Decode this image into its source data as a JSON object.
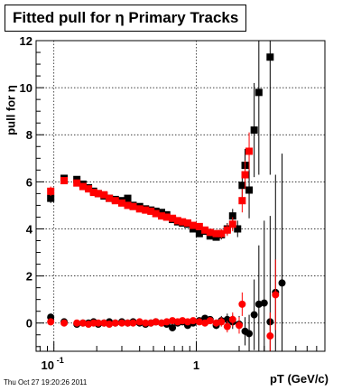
{
  "title": "Fitted pull for η  Primary Tracks",
  "footer": "Thu Oct 27 19:20:26 2011",
  "chart_data": {
    "type": "scatter",
    "title": "Fitted pull for η  Primary Tracks",
    "xlabel": "pT (GeV/c)",
    "ylabel": "pull for η",
    "x_scale": "log",
    "xlim": [
      0.075,
      8.0
    ],
    "ylim": [
      -1.2,
      12.0
    ],
    "x_ticks": [
      {
        "value": 0.1,
        "label": "10",
        "exp": "-1"
      },
      {
        "value": 1,
        "label": "1"
      }
    ],
    "y_ticks": [
      0,
      2,
      4,
      6,
      8,
      10,
      12
    ],
    "grid": true,
    "colors": {
      "series_black": "#000000",
      "series_red": "#ff0000",
      "grid": "#000000"
    },
    "series": [
      {
        "marker": "square",
        "color": "#000000",
        "points": [
          {
            "x": 0.095,
            "y": 5.3,
            "e": 0.2
          },
          {
            "x": 0.118,
            "y": 6.15,
            "e": 0.15
          },
          {
            "x": 0.145,
            "y": 6.1,
            "e": 0.12
          },
          {
            "x": 0.16,
            "y": 5.9,
            "e": 0.12
          },
          {
            "x": 0.175,
            "y": 5.75,
            "e": 0.1
          },
          {
            "x": 0.19,
            "y": 5.6,
            "e": 0.1
          },
          {
            "x": 0.205,
            "y": 5.5,
            "e": 0.1
          },
          {
            "x": 0.225,
            "y": 5.4,
            "e": 0.1
          },
          {
            "x": 0.245,
            "y": 5.3,
            "e": 0.1
          },
          {
            "x": 0.27,
            "y": 5.25,
            "e": 0.1
          },
          {
            "x": 0.3,
            "y": 5.2,
            "e": 0.1
          },
          {
            "x": 0.33,
            "y": 5.3,
            "e": 0.1
          },
          {
            "x": 0.36,
            "y": 5.0,
            "e": 0.1
          },
          {
            "x": 0.4,
            "y": 4.95,
            "e": 0.1
          },
          {
            "x": 0.44,
            "y": 4.85,
            "e": 0.1
          },
          {
            "x": 0.48,
            "y": 4.8,
            "e": 0.1
          },
          {
            "x": 0.52,
            "y": 4.75,
            "e": 0.1
          },
          {
            "x": 0.57,
            "y": 4.7,
            "e": 0.1
          },
          {
            "x": 0.62,
            "y": 4.6,
            "e": 0.1
          },
          {
            "x": 0.68,
            "y": 4.4,
            "e": 0.1
          },
          {
            "x": 0.74,
            "y": 4.3,
            "e": 0.1
          },
          {
            "x": 0.8,
            "y": 4.25,
            "e": 0.1
          },
          {
            "x": 0.87,
            "y": 4.2,
            "e": 0.1
          },
          {
            "x": 0.95,
            "y": 4.0,
            "e": 0.1
          },
          {
            "x": 1.05,
            "y": 3.8,
            "e": 0.12
          },
          {
            "x": 1.15,
            "y": 3.9,
            "e": 0.12
          },
          {
            "x": 1.25,
            "y": 3.7,
            "e": 0.12
          },
          {
            "x": 1.38,
            "y": 3.65,
            "e": 0.15
          },
          {
            "x": 1.5,
            "y": 3.75,
            "e": 0.2
          },
          {
            "x": 1.65,
            "y": 4.0,
            "e": 0.25
          },
          {
            "x": 1.8,
            "y": 4.55,
            "e": 0.3
          },
          {
            "x": 1.95,
            "y": 4.0,
            "e": 0.35
          },
          {
            "x": 2.1,
            "y": 5.85,
            "e": 0.6
          },
          {
            "x": 2.2,
            "y": 6.7,
            "e": 0.7
          },
          {
            "x": 2.35,
            "y": 5.65,
            "e": 1.2
          },
          {
            "x": 2.55,
            "y": 8.2,
            "e": 2.0
          },
          {
            "x": 2.75,
            "y": 9.8,
            "e": 3.5
          },
          {
            "x": 3.3,
            "y": 11.3,
            "e": 5.0
          }
        ]
      },
      {
        "marker": "square",
        "color": "#ff0000",
        "points": [
          {
            "x": 0.095,
            "y": 5.6,
            "e": 0.2
          },
          {
            "x": 0.118,
            "y": 6.05,
            "e": 0.12
          },
          {
            "x": 0.145,
            "y": 5.95,
            "e": 0.1
          },
          {
            "x": 0.16,
            "y": 5.8,
            "e": 0.1
          },
          {
            "x": 0.175,
            "y": 5.7,
            "e": 0.1
          },
          {
            "x": 0.19,
            "y": 5.55,
            "e": 0.1
          },
          {
            "x": 0.205,
            "y": 5.5,
            "e": 0.1
          },
          {
            "x": 0.225,
            "y": 5.45,
            "e": 0.1
          },
          {
            "x": 0.245,
            "y": 5.3,
            "e": 0.1
          },
          {
            "x": 0.27,
            "y": 5.2,
            "e": 0.1
          },
          {
            "x": 0.3,
            "y": 5.1,
            "e": 0.1
          },
          {
            "x": 0.33,
            "y": 5.0,
            "e": 0.1
          },
          {
            "x": 0.36,
            "y": 4.95,
            "e": 0.1
          },
          {
            "x": 0.4,
            "y": 4.85,
            "e": 0.1
          },
          {
            "x": 0.44,
            "y": 4.8,
            "e": 0.1
          },
          {
            "x": 0.48,
            "y": 4.75,
            "e": 0.1
          },
          {
            "x": 0.52,
            "y": 4.65,
            "e": 0.1
          },
          {
            "x": 0.57,
            "y": 4.55,
            "e": 0.1
          },
          {
            "x": 0.62,
            "y": 4.5,
            "e": 0.1
          },
          {
            "x": 0.68,
            "y": 4.45,
            "e": 0.1
          },
          {
            "x": 0.74,
            "y": 4.35,
            "e": 0.1
          },
          {
            "x": 0.8,
            "y": 4.3,
            "e": 0.1
          },
          {
            "x": 0.87,
            "y": 4.25,
            "e": 0.1
          },
          {
            "x": 0.95,
            "y": 4.15,
            "e": 0.1
          },
          {
            "x": 1.05,
            "y": 4.1,
            "e": 0.12
          },
          {
            "x": 1.15,
            "y": 3.95,
            "e": 0.12
          },
          {
            "x": 1.25,
            "y": 3.85,
            "e": 0.12
          },
          {
            "x": 1.38,
            "y": 3.8,
            "e": 0.15
          },
          {
            "x": 1.5,
            "y": 3.8,
            "e": 0.2
          },
          {
            "x": 1.65,
            "y": 3.95,
            "e": 0.25
          },
          {
            "x": 1.8,
            "y": 4.2,
            "e": 0.3
          },
          {
            "x": 2.1,
            "y": 5.2,
            "e": 0.5
          },
          {
            "x": 2.2,
            "y": 6.3,
            "e": 0.6
          },
          {
            "x": 2.35,
            "y": 7.3,
            "e": 0.8
          }
        ]
      },
      {
        "marker": "circle",
        "color": "#000000",
        "points": [
          {
            "x": 0.095,
            "y": 0.25,
            "e": 0.15
          },
          {
            "x": 0.118,
            "y": 0.05,
            "e": 0.1
          },
          {
            "x": 0.145,
            "y": -0.05,
            "e": 0.1
          },
          {
            "x": 0.16,
            "y": 0.0,
            "e": 0.1
          },
          {
            "x": 0.175,
            "y": 0.0,
            "e": 0.1
          },
          {
            "x": 0.19,
            "y": 0.05,
            "e": 0.1
          },
          {
            "x": 0.205,
            "y": -0.05,
            "e": 0.1
          },
          {
            "x": 0.225,
            "y": 0.0,
            "e": 0.1
          },
          {
            "x": 0.245,
            "y": 0.05,
            "e": 0.1
          },
          {
            "x": 0.27,
            "y": 0.0,
            "e": 0.1
          },
          {
            "x": 0.3,
            "y": 0.05,
            "e": 0.1
          },
          {
            "x": 0.33,
            "y": 0.0,
            "e": 0.1
          },
          {
            "x": 0.36,
            "y": 0.05,
            "e": 0.1
          },
          {
            "x": 0.4,
            "y": 0.0,
            "e": 0.1
          },
          {
            "x": 0.44,
            "y": -0.05,
            "e": 0.1
          },
          {
            "x": 0.48,
            "y": 0.0,
            "e": 0.1
          },
          {
            "x": 0.52,
            "y": 0.05,
            "e": 0.1
          },
          {
            "x": 0.57,
            "y": 0.0,
            "e": 0.1
          },
          {
            "x": 0.62,
            "y": -0.05,
            "e": 0.1
          },
          {
            "x": 0.68,
            "y": -0.2,
            "e": 0.1
          },
          {
            "x": 0.74,
            "y": 0.0,
            "e": 0.1
          },
          {
            "x": 0.8,
            "y": 0.05,
            "e": 0.1
          },
          {
            "x": 0.87,
            "y": -0.1,
            "e": 0.1
          },
          {
            "x": 0.95,
            "y": 0.0,
            "e": 0.1
          },
          {
            "x": 1.05,
            "y": 0.1,
            "e": 0.12
          },
          {
            "x": 1.15,
            "y": 0.2,
            "e": 0.12
          },
          {
            "x": 1.25,
            "y": 0.15,
            "e": 0.12
          },
          {
            "x": 1.38,
            "y": -0.1,
            "e": 0.15
          },
          {
            "x": 1.5,
            "y": 0.1,
            "e": 0.2
          },
          {
            "x": 1.65,
            "y": 0.15,
            "e": 0.25
          },
          {
            "x": 1.8,
            "y": 0.05,
            "e": 0.3
          },
          {
            "x": 2.0,
            "y": -0.05,
            "e": 0.35
          },
          {
            "x": 2.2,
            "y": -0.35,
            "e": 0.6
          },
          {
            "x": 2.35,
            "y": -0.45,
            "e": 0.8
          },
          {
            "x": 2.55,
            "y": 0.35,
            "e": 1.5
          },
          {
            "x": 2.75,
            "y": 0.8,
            "e": 2.5
          },
          {
            "x": 3.0,
            "y": 0.85,
            "e": 3.5
          },
          {
            "x": 3.3,
            "y": 0.05,
            "e": 4.5
          },
          {
            "x": 3.6,
            "y": 1.3,
            "e": 5.0
          },
          {
            "x": 4.0,
            "y": 1.7,
            "e": 5.5
          }
        ]
      },
      {
        "marker": "circle",
        "color": "#ff0000",
        "points": [
          {
            "x": 0.095,
            "y": 0.05,
            "e": 0.15
          },
          {
            "x": 0.118,
            "y": 0.0,
            "e": 0.1
          },
          {
            "x": 0.145,
            "y": 0.0,
            "e": 0.1
          },
          {
            "x": 0.16,
            "y": 0.0,
            "e": 0.1
          },
          {
            "x": 0.175,
            "y": -0.05,
            "e": 0.1
          },
          {
            "x": 0.19,
            "y": 0.0,
            "e": 0.1
          },
          {
            "x": 0.205,
            "y": 0.0,
            "e": 0.1
          },
          {
            "x": 0.225,
            "y": 0.0,
            "e": 0.1
          },
          {
            "x": 0.245,
            "y": -0.05,
            "e": 0.1
          },
          {
            "x": 0.27,
            "y": 0.0,
            "e": 0.1
          },
          {
            "x": 0.3,
            "y": 0.0,
            "e": 0.1
          },
          {
            "x": 0.33,
            "y": 0.0,
            "e": 0.1
          },
          {
            "x": 0.36,
            "y": 0.0,
            "e": 0.1
          },
          {
            "x": 0.4,
            "y": 0.05,
            "e": 0.1
          },
          {
            "x": 0.44,
            "y": 0.0,
            "e": 0.1
          },
          {
            "x": 0.48,
            "y": 0.0,
            "e": 0.1
          },
          {
            "x": 0.52,
            "y": 0.05,
            "e": 0.1
          },
          {
            "x": 0.57,
            "y": 0.0,
            "e": 0.1
          },
          {
            "x": 0.62,
            "y": 0.05,
            "e": 0.1
          },
          {
            "x": 0.68,
            "y": 0.1,
            "e": 0.1
          },
          {
            "x": 0.74,
            "y": 0.05,
            "e": 0.1
          },
          {
            "x": 0.8,
            "y": 0.1,
            "e": 0.1
          },
          {
            "x": 0.87,
            "y": 0.05,
            "e": 0.1
          },
          {
            "x": 0.95,
            "y": 0.1,
            "e": 0.1
          },
          {
            "x": 1.05,
            "y": 0.05,
            "e": 0.12
          },
          {
            "x": 1.15,
            "y": 0.0,
            "e": 0.12
          },
          {
            "x": 1.25,
            "y": 0.1,
            "e": 0.12
          },
          {
            "x": 1.38,
            "y": 0.0,
            "e": 0.15
          },
          {
            "x": 1.5,
            "y": 0.05,
            "e": 0.2
          },
          {
            "x": 1.65,
            "y": -0.15,
            "e": 0.25
          },
          {
            "x": 1.8,
            "y": 0.15,
            "e": 0.3
          },
          {
            "x": 2.0,
            "y": -0.1,
            "e": 0.35
          },
          {
            "x": 2.1,
            "y": 0.8,
            "e": 0.5
          },
          {
            "x": 3.3,
            "y": -0.55,
            "e": 1.0
          },
          {
            "x": 3.6,
            "y": 1.2,
            "e": 1.5
          }
        ]
      }
    ]
  }
}
